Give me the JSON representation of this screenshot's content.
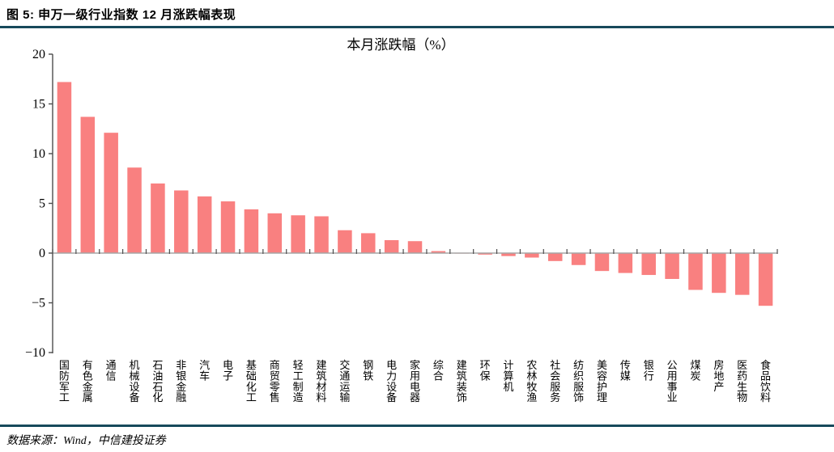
{
  "header": {
    "title": "图 5: 申万一级行业指数 12 月涨跌幅表现"
  },
  "footer": {
    "source": "数据来源：Wind，中信建投证券"
  },
  "colors": {
    "bar": "#f98080",
    "rule": "#17495b",
    "axis": "#4d4d4d",
    "baseline": "#a6a6a6",
    "text": "#000000"
  },
  "chart_data": {
    "type": "bar",
    "title": "本月涨跌幅（%）",
    "xlabel": "",
    "ylabel": "",
    "ylim": [
      -10,
      20
    ],
    "yticks": [
      20,
      15,
      10,
      5,
      0,
      -5,
      -10
    ],
    "grid": false,
    "legend": "none",
    "bar_color": "#f98080",
    "categories": [
      "国防军工",
      "有色金属",
      "通信",
      "机械设备",
      "石油石化",
      "非银金融",
      "汽车",
      "电子",
      "基础化工",
      "商贸零售",
      "轻工制造",
      "建筑材料",
      "交通运输",
      "钢铁",
      "电力设备",
      "家用电器",
      "综合",
      "建筑装饰",
      "环保",
      "计算机",
      "农林牧渔",
      "社会服务",
      "纺织服饰",
      "美容护理",
      "传媒",
      "银行",
      "公用事业",
      "煤炭",
      "房地产",
      "医药生物",
      "食品饮料"
    ],
    "values": [
      17.2,
      13.7,
      12.1,
      8.6,
      7.0,
      6.3,
      5.7,
      5.2,
      4.4,
      4.0,
      3.8,
      3.7,
      2.3,
      2.0,
      1.3,
      1.2,
      0.2,
      -0.05,
      -0.15,
      -0.3,
      -0.45,
      -0.8,
      -1.2,
      -1.8,
      -2.0,
      -2.2,
      -2.6,
      -3.7,
      -4.0,
      -4.2,
      -5.3
    ]
  }
}
